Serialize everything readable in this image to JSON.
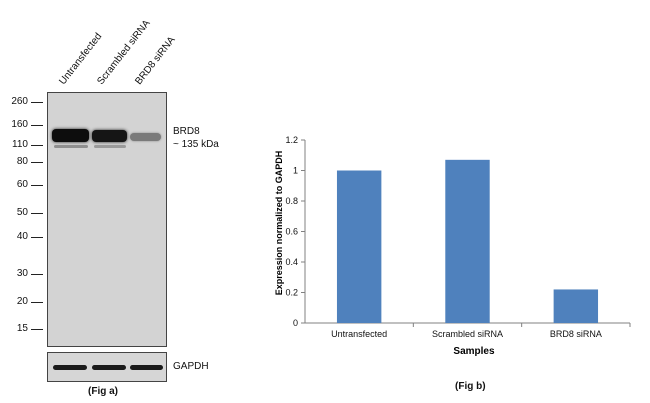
{
  "fig_a": {
    "lane_labels": [
      "Untransfected",
      "Scrambled siRNA",
      "BRD8 siRNA"
    ],
    "markers": [
      "260",
      "160",
      "110",
      "80",
      "60",
      "50",
      "40",
      "30",
      "20",
      "15"
    ],
    "target_label": "BRD8",
    "target_size": "~ 135 kDa",
    "loading_label": "GAPDH",
    "caption": "(Fig a)"
  },
  "fig_b": {
    "caption": "(Fig b)"
  },
  "chart_data": {
    "type": "bar",
    "categories": [
      "Untransfected",
      "Scrambled siRNA",
      "BRD8 siRNA"
    ],
    "values": [
      1.0,
      1.07,
      0.22
    ],
    "xlabel": "Samples",
    "ylabel": "Expression  normalized to GAPDH",
    "ylim": [
      0,
      1.2
    ],
    "yticks": [
      0,
      0.2,
      0.4,
      0.6,
      0.8,
      1,
      1.2
    ],
    "bar_color": "#4f81bd",
    "grid": false
  }
}
